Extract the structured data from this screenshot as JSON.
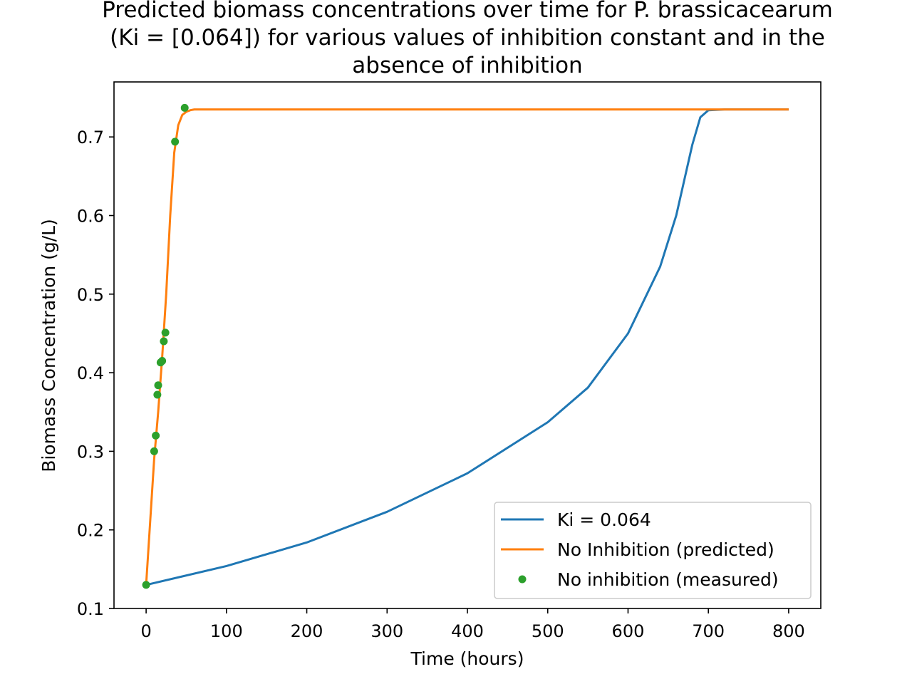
{
  "chart_data": {
    "type": "line",
    "title": "Predicted biomass concentrations over time for P. brassicacearum (Ki = [0.064]) for various values of inhibition constant and in the absence of inhibition",
    "title_lines": [
      "Predicted biomass concentrations over time for P. brassicacearum",
      "(Ki = [0.064]) for various values of inhibition constant and in the",
      "absence of inhibition"
    ],
    "xlabel": "Time (hours)",
    "ylabel": "Biomass Concentration (g/L)",
    "xlim": [
      -40,
      840
    ],
    "ylim": [
      0.1,
      0.77
    ],
    "xticks": [
      0,
      100,
      200,
      300,
      400,
      500,
      600,
      700,
      800
    ],
    "yticks": [
      0.1,
      0.2,
      0.3,
      0.4,
      0.5,
      0.6,
      0.7
    ],
    "legend_position": "lower right",
    "grid": false,
    "series": [
      {
        "name": "Ki = 0.064",
        "kind": "line",
        "color": "#1f77b4",
        "x": [
          0,
          100,
          200,
          300,
          400,
          500,
          550,
          600,
          640,
          660,
          680,
          690,
          700,
          720,
          800
        ],
        "y": [
          0.13,
          0.154,
          0.184,
          0.223,
          0.272,
          0.337,
          0.381,
          0.45,
          0.535,
          0.6,
          0.69,
          0.725,
          0.734,
          0.735,
          0.735
        ]
      },
      {
        "name": "No Inhibition (predicted)",
        "kind": "line",
        "color": "#ff7f0e",
        "x": [
          0,
          5,
          10,
          15,
          20,
          25,
          30,
          35,
          40,
          45,
          50,
          55,
          60,
          70,
          80,
          100,
          200,
          400,
          600,
          800
        ],
        "y": [
          0.13,
          0.21,
          0.29,
          0.35,
          0.42,
          0.5,
          0.6,
          0.68,
          0.715,
          0.728,
          0.732,
          0.734,
          0.735,
          0.735,
          0.735,
          0.735,
          0.735,
          0.735,
          0.735,
          0.735
        ]
      },
      {
        "name": "No inhibition (measured)",
        "kind": "scatter",
        "color": "#2ca02c",
        "x": [
          0,
          10,
          12,
          14,
          15,
          18,
          20,
          22,
          24,
          36,
          48
        ],
        "y": [
          0.13,
          0.3,
          0.32,
          0.372,
          0.384,
          0.413,
          0.415,
          0.44,
          0.451,
          0.694,
          0.737
        ]
      }
    ]
  }
}
